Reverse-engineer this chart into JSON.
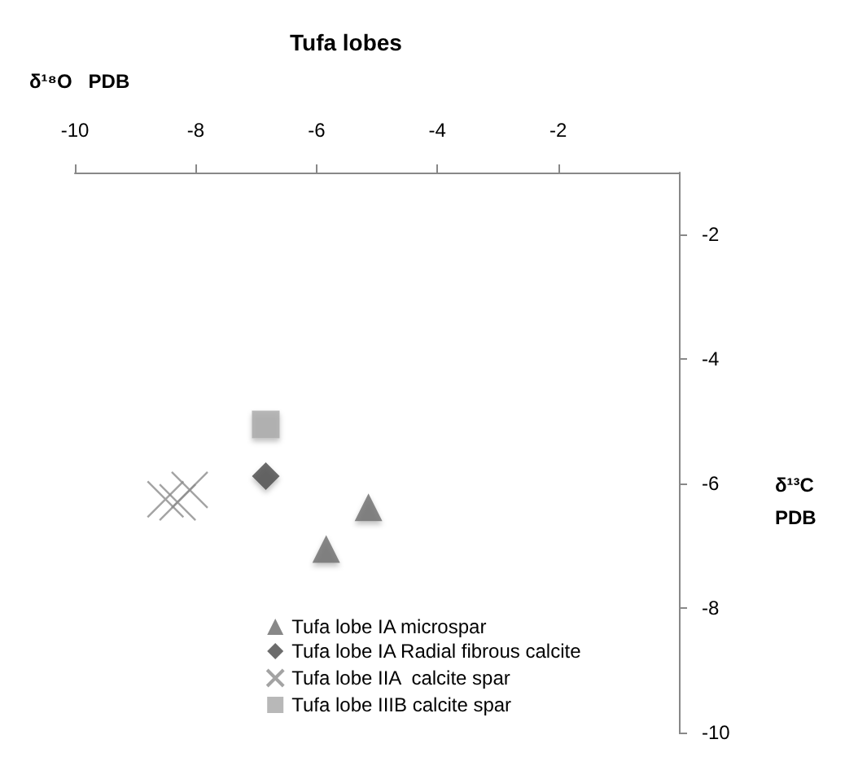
{
  "chart_data": {
    "type": "scatter",
    "title": "Tufa lobes",
    "xlabel": "δ¹⁸O   PDB",
    "ylabel": "δ¹³C PDB",
    "xlim": [
      -10,
      0
    ],
    "xticks": [
      -10,
      -8,
      -6,
      -4,
      -2
    ],
    "ylim": [
      -10,
      -1
    ],
    "yticks": [
      -10,
      -8,
      -6,
      -4,
      -2
    ],
    "grid": false,
    "legend": "bottom",
    "series": [
      {
        "name": "Tufa lobe IA microspar",
        "color": "#6a6a6a",
        "marker": "triangle",
        "x": [
          -5.14,
          -5.84
        ],
        "values": [
          -6.38,
          -7.05
        ]
      },
      {
        "name": "Tufa lobe IA Radial fibrous calcite",
        "color": "#474747",
        "marker": "diamond",
        "x": [
          -6.84
        ],
        "values": [
          -5.88
        ]
      },
      {
        "name": "Tufa lobe IIA  calcite spar",
        "color": "#8c8c8c",
        "marker": "cross",
        "x": [
          -8.5,
          -8.3,
          -8.1
        ],
        "values": [
          -6.25,
          -6.3,
          -6.1
        ]
      },
      {
        "name": "Tufa lobe IIIB calcite spar",
        "color": "#a6a6a6",
        "marker": "square",
        "x": [
          -6.84
        ],
        "values": [
          -5.05
        ]
      }
    ]
  }
}
